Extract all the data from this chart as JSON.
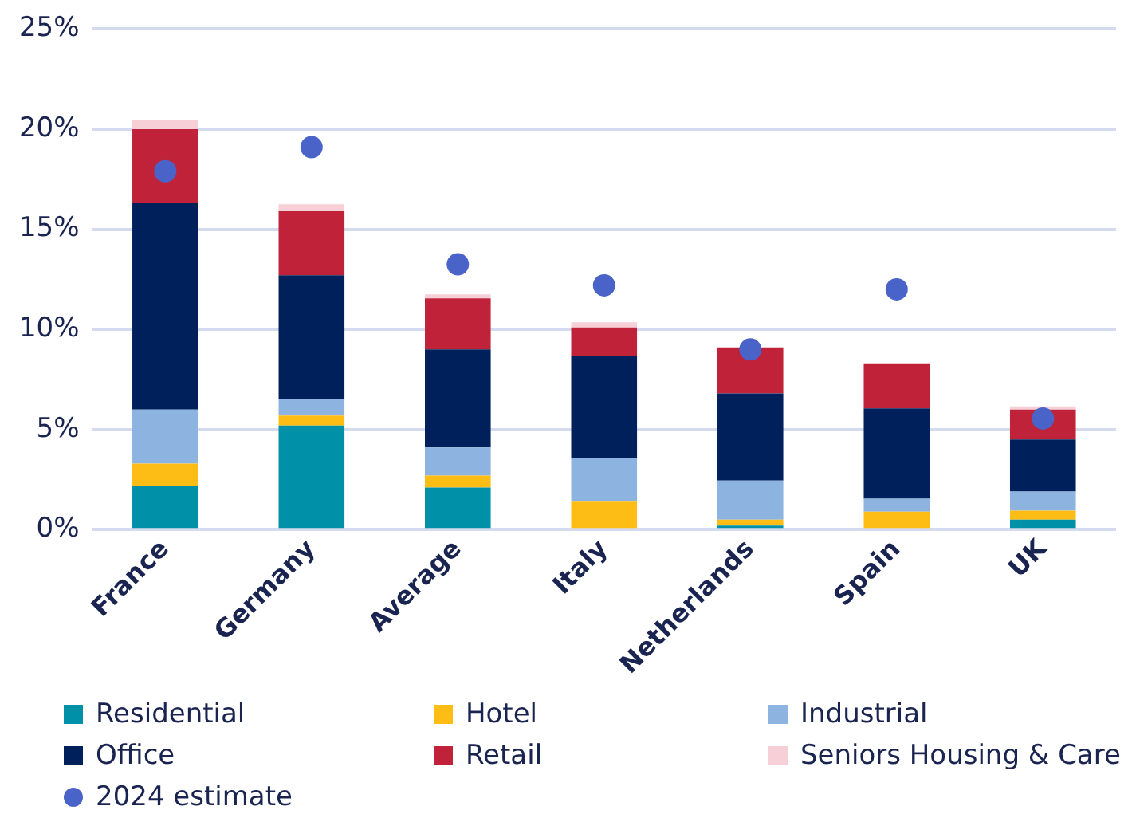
{
  "chart_data": {
    "type": "bar",
    "stacked": true,
    "categories": [
      "France",
      "Germany",
      "Average",
      "Italy",
      "Netherlands",
      "Spain",
      "UK"
    ],
    "series": [
      {
        "name": "Residential",
        "color": "#0090a8",
        "values": [
          2.2,
          5.2,
          2.1,
          0,
          0.2,
          0,
          0.5
        ]
      },
      {
        "name": "Hotel",
        "color": "#fdbd14",
        "values": [
          1.1,
          0.5,
          0.6,
          1.4,
          0.3,
          0.9,
          0.45
        ]
      },
      {
        "name": "Industrial",
        "color": "#8db3e0",
        "values": [
          2.7,
          0.8,
          1.4,
          2.2,
          1.95,
          0.65,
          0.95
        ]
      },
      {
        "name": "Office",
        "color": "#00205b",
        "values": [
          10.3,
          6.2,
          4.9,
          5.05,
          4.35,
          4.5,
          2.6
        ]
      },
      {
        "name": "Retail",
        "color": "#c0223a",
        "values": [
          3.7,
          3.2,
          2.55,
          1.45,
          2.3,
          2.25,
          1.5
        ]
      },
      {
        "name": "Seniors Housing & Care",
        "color": "#f6d0d6",
        "values": [
          0.45,
          0.35,
          0.2,
          0.25,
          0,
          0,
          0.15
        ]
      },
      {
        "name": "2024 estimate",
        "type": "scatter",
        "marker": "circle",
        "color": "#4a63c8",
        "x": [
          "France",
          "Germany",
          "Average",
          "Italy",
          "Netherlands",
          "Spain",
          "UK"
        ],
        "values": [
          17.9,
          19.1,
          13.25,
          12.2,
          9.0,
          12.0,
          5.55
        ]
      }
    ],
    "ylim": [
      0,
      25
    ],
    "yticks": [
      {
        "value": 0,
        "label": "0%"
      },
      {
        "value": 5,
        "label": "5%"
      },
      {
        "value": 10,
        "label": "10%"
      },
      {
        "value": 15,
        "label": "15%"
      },
      {
        "value": 20,
        "label": "20%"
      },
      {
        "value": 25,
        "label": "25%"
      }
    ],
    "grid": "y",
    "legend": "bottom"
  }
}
